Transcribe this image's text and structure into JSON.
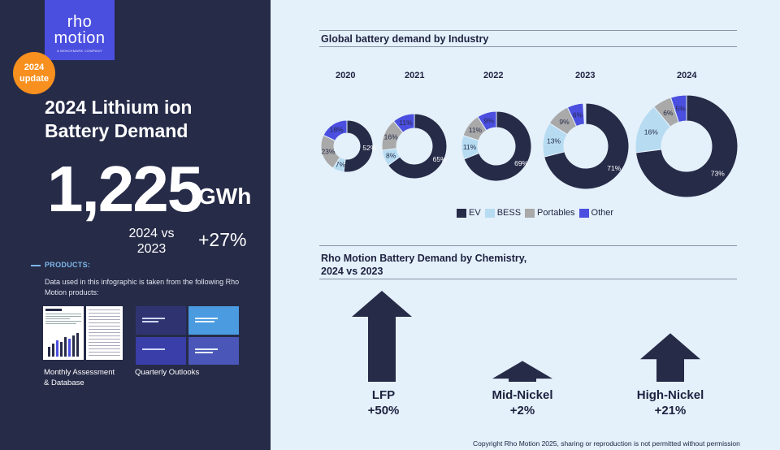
{
  "brand": {
    "line1": "rho",
    "line2": "motion",
    "tag": "A BENCHMARK COMPANY"
  },
  "badge": {
    "line1": "2024",
    "line2": "update"
  },
  "headline": {
    "line1": "2024 Lithium ion",
    "line2": "Battery Demand"
  },
  "total": {
    "value": "1,225",
    "unit": "GWh"
  },
  "comparison": {
    "line1": "2024 vs",
    "line2": "2023",
    "change": "+27%"
  },
  "products": {
    "heading": "PRODUCTS:",
    "description": "Data used in this infographic is taken from the following Rho Motion products:",
    "items": [
      {
        "line1": "Monthly Assessment",
        "line2": "& Database"
      },
      {
        "line1": "Quarterly Outlooks",
        "line2": ""
      }
    ]
  },
  "colors": {
    "ev": "#262b48",
    "bess": "#b7dcf2",
    "portables": "#a9a9a9",
    "other": "#4b4fe0",
    "accent": "#f7901e",
    "panel": "#262b48",
    "background": "#e4f0fa"
  },
  "chart_data": [
    {
      "type": "donut",
      "title": "Global battery demand by Industry",
      "legend": [
        "EV",
        "BESS",
        "Portables",
        "Other"
      ],
      "categories": [
        "2020",
        "2021",
        "2022",
        "2023",
        "2024"
      ],
      "series": [
        {
          "name": "EV",
          "values": [
            52,
            65,
            69,
            71,
            73
          ]
        },
        {
          "name": "BESS",
          "values": [
            7,
            8,
            11,
            13,
            16
          ]
        },
        {
          "name": "Portables",
          "values": [
            23,
            16,
            11,
            9,
            6
          ]
        },
        {
          "name": "Other",
          "values": [
            18,
            11,
            9,
            6,
            5
          ]
        }
      ],
      "labels": [
        [
          "52%",
          "7%",
          "23%",
          "18%"
        ],
        [
          "65%",
          "8%",
          "16%",
          "11%"
        ],
        [
          "69%",
          "11%",
          "11%",
          "9%"
        ],
        [
          "71%",
          "13%",
          "9%",
          "6%"
        ],
        [
          "73%",
          "16%",
          "6%",
          "5%"
        ]
      ],
      "legend_position": "bottom"
    },
    {
      "type": "arrows",
      "title_line1": "Rho Motion Battery Demand by Chemistry,",
      "title_line2": "2024 vs 2023",
      "categories": [
        "LFP",
        "Mid-Nickel",
        "High-Nickel"
      ],
      "values": [
        50,
        2,
        21
      ],
      "labels": [
        "+50%",
        "+2%",
        "+21%"
      ]
    }
  ],
  "copyright": "Copyright Rho Motion 2025, sharing or reproduction is not permitted without permission"
}
